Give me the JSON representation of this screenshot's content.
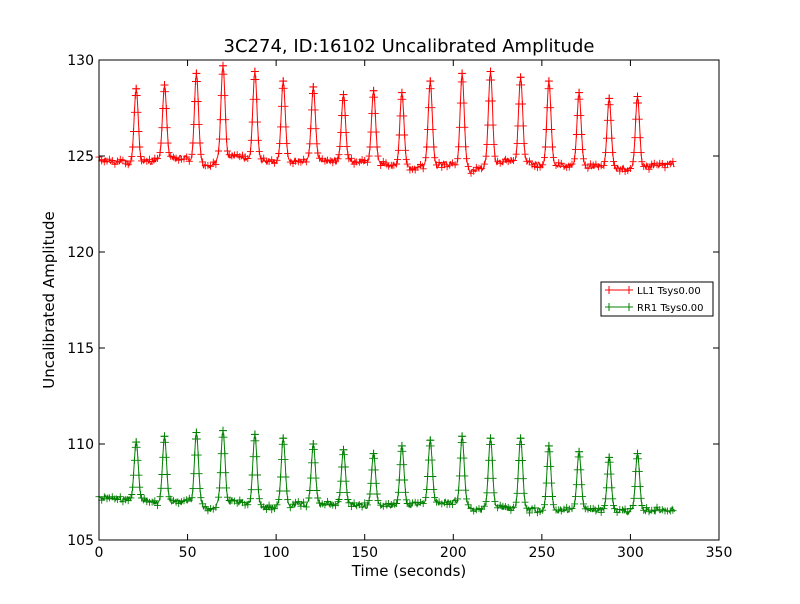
{
  "chart_data": {
    "type": "line",
    "title": "3C274, ID:16102 Uncalibrated Amplitude",
    "xlabel": "Time (seconds)",
    "ylabel": "Uncalibrated Amplitude",
    "xlim": [
      0,
      350
    ],
    "ylim": [
      105,
      130
    ],
    "xticks": [
      0,
      50,
      100,
      150,
      200,
      250,
      300,
      350
    ],
    "yticks": [
      105,
      110,
      115,
      120,
      125,
      130
    ],
    "grid": false,
    "legend_position": "center-right",
    "marker": "plus",
    "x_start": 0,
    "x_end": 325,
    "series": [
      {
        "name": "LL1 Tsys0.00",
        "color": "#ff0000",
        "baseline": [
          [
            0,
            124.8
          ],
          [
            20,
            124.6
          ],
          [
            35,
            124.8
          ],
          [
            50,
            124.9
          ],
          [
            60,
            124.4
          ],
          [
            75,
            125.0
          ],
          [
            95,
            124.7
          ],
          [
            120,
            124.8
          ],
          [
            150,
            124.7
          ],
          [
            175,
            124.4
          ],
          [
            200,
            124.6
          ],
          [
            210,
            124.2
          ],
          [
            230,
            124.8
          ],
          [
            250,
            124.5
          ],
          [
            270,
            124.5
          ],
          [
            300,
            124.3
          ],
          [
            325,
            124.6
          ]
        ],
        "peaks": [
          {
            "x": 21,
            "y": 128.5
          },
          {
            "x": 37,
            "y": 128.7
          },
          {
            "x": 55,
            "y": 129.3
          },
          {
            "x": 70,
            "y": 129.7
          },
          {
            "x": 88,
            "y": 129.4
          },
          {
            "x": 104,
            "y": 128.9
          },
          {
            "x": 121,
            "y": 128.6
          },
          {
            "x": 138,
            "y": 128.2
          },
          {
            "x": 155,
            "y": 128.4
          },
          {
            "x": 171,
            "y": 128.3
          },
          {
            "x": 187,
            "y": 128.9
          },
          {
            "x": 205,
            "y": 129.3
          },
          {
            "x": 221,
            "y": 129.4
          },
          {
            "x": 238,
            "y": 129.1
          },
          {
            "x": 254,
            "y": 128.9
          },
          {
            "x": 271,
            "y": 128.3
          },
          {
            "x": 288,
            "y": 128.0
          },
          {
            "x": 304,
            "y": 128.1
          }
        ]
      },
      {
        "name": "RR1 Tsys0.00",
        "color": "#008000",
        "baseline": [
          [
            0,
            107.2
          ],
          [
            20,
            107.1
          ],
          [
            35,
            106.9
          ],
          [
            50,
            107.1
          ],
          [
            60,
            106.6
          ],
          [
            75,
            107.0
          ],
          [
            95,
            106.7
          ],
          [
            120,
            106.9
          ],
          [
            150,
            106.8
          ],
          [
            175,
            106.8
          ],
          [
            200,
            107.0
          ],
          [
            210,
            106.6
          ],
          [
            230,
            106.7
          ],
          [
            250,
            106.5
          ],
          [
            270,
            106.6
          ],
          [
            300,
            106.5
          ],
          [
            325,
            106.6
          ]
        ],
        "peaks": [
          {
            "x": 21,
            "y": 110.1
          },
          {
            "x": 37,
            "y": 110.4
          },
          {
            "x": 55,
            "y": 110.6
          },
          {
            "x": 70,
            "y": 110.7
          },
          {
            "x": 88,
            "y": 110.5
          },
          {
            "x": 104,
            "y": 110.3
          },
          {
            "x": 121,
            "y": 110.0
          },
          {
            "x": 138,
            "y": 109.7
          },
          {
            "x": 155,
            "y": 109.5
          },
          {
            "x": 171,
            "y": 109.9
          },
          {
            "x": 187,
            "y": 110.2
          },
          {
            "x": 205,
            "y": 110.4
          },
          {
            "x": 221,
            "y": 110.3
          },
          {
            "x": 238,
            "y": 110.3
          },
          {
            "x": 254,
            "y": 109.9
          },
          {
            "x": 271,
            "y": 109.6
          },
          {
            "x": 288,
            "y": 109.3
          },
          {
            "x": 304,
            "y": 109.5
          }
        ]
      }
    ]
  }
}
